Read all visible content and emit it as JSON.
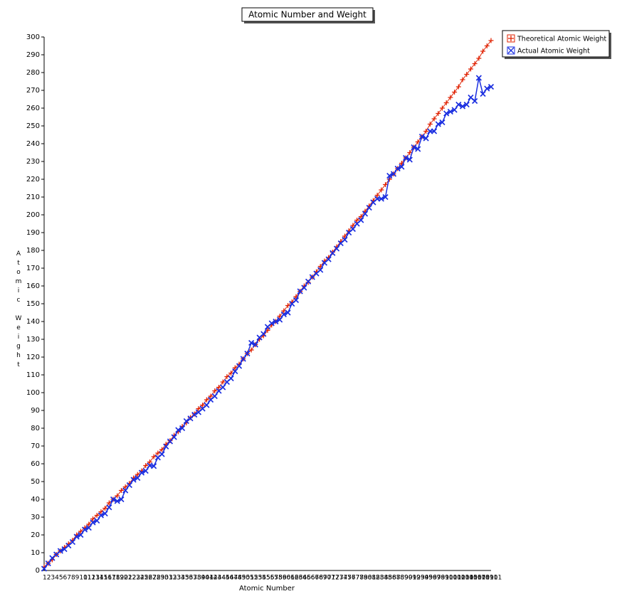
{
  "chart_data": {
    "type": "line",
    "title": "Atomic Number and Weight",
    "x_label": "Atomic Number",
    "y_label": "Atomic Weight",
    "categories": [
      1,
      2,
      3,
      4,
      5,
      6,
      7,
      8,
      9,
      10,
      11,
      12,
      13,
      14,
      15,
      16,
      17,
      18,
      19,
      20,
      21,
      22,
      23,
      24,
      25,
      26,
      27,
      28,
      29,
      30,
      31,
      32,
      33,
      34,
      35,
      36,
      37,
      38,
      39,
      40,
      41,
      42,
      43,
      44,
      45,
      46,
      47,
      48,
      49,
      50,
      51,
      52,
      53,
      54,
      55,
      56,
      57,
      58,
      59,
      60,
      61,
      62,
      63,
      64,
      65,
      66,
      67,
      68,
      69,
      70,
      71,
      72,
      73,
      74,
      75,
      76,
      77,
      78,
      79,
      80,
      81,
      82,
      83,
      84,
      85,
      86,
      87,
      88,
      89,
      90,
      91,
      92,
      93,
      94,
      95,
      96,
      97,
      98,
      99,
      100,
      101,
      102,
      103,
      104,
      105,
      106,
      107,
      108,
      109,
      110,
      111
    ],
    "series": [
      {
        "name": "Theoretical Atomic Weight",
        "color": "#e02000",
        "marker": "plus",
        "values": [
          2,
          4,
          6,
          9,
          11,
          13,
          15,
          17,
          20,
          22,
          24,
          26,
          29,
          31,
          33,
          35,
          38,
          40,
          42,
          45,
          47,
          49,
          52,
          54,
          56,
          59,
          61,
          64,
          66,
          68,
          71,
          73,
          76,
          78,
          81,
          83,
          86,
          88,
          91,
          93,
          96,
          98,
          101,
          103,
          106,
          109,
          111,
          114,
          116,
          119,
          122,
          124,
          127,
          130,
          132,
          135,
          138,
          140,
          143,
          146,
          149,
          151,
          154,
          157,
          160,
          162,
          165,
          168,
          171,
          174,
          176,
          179,
          182,
          185,
          188,
          191,
          194,
          197,
          199,
          202,
          205,
          208,
          211,
          214,
          217,
          220,
          223,
          226,
          229,
          232,
          235,
          238,
          241,
          244,
          247,
          251,
          254,
          257,
          260,
          263,
          266,
          269,
          272,
          276,
          279,
          282,
          285,
          288,
          292,
          295,
          298
        ]
      },
      {
        "name": "Actual Atomic Weight",
        "color": "#1a2ee0",
        "marker": "cross",
        "values": [
          1,
          4,
          7,
          9,
          11,
          12,
          14,
          16,
          19,
          20,
          23,
          24,
          27,
          28,
          31,
          32,
          35.5,
          40,
          39,
          40,
          45,
          48,
          51,
          52,
          55,
          56,
          59,
          58.7,
          63.5,
          65.4,
          69.7,
          72.6,
          75,
          79,
          80,
          84,
          85.5,
          87.6,
          89,
          91,
          93,
          96,
          98,
          101,
          103,
          106,
          108,
          112,
          115,
          119,
          122,
          128,
          127,
          131,
          133,
          137,
          139,
          140,
          141,
          144,
          145,
          150,
          152,
          157,
          159,
          162.5,
          165,
          167,
          169,
          173,
          175,
          178.5,
          181,
          184,
          186,
          190,
          192,
          195,
          197,
          200.6,
          204,
          207,
          209,
          209,
          210,
          222,
          223,
          226,
          227,
          232,
          231,
          238,
          237,
          244,
          243,
          247,
          247,
          251,
          252,
          257,
          258,
          259,
          262,
          261,
          262,
          266,
          264,
          277,
          268,
          271,
          272
        ]
      }
    ],
    "ylim": [
      0,
      300
    ],
    "yticks": [
      0,
      10,
      20,
      30,
      40,
      50,
      60,
      70,
      80,
      90,
      100,
      110,
      120,
      130,
      140,
      150,
      160,
      170,
      180,
      190,
      200,
      210,
      220,
      230,
      240,
      250,
      260,
      270,
      280,
      290,
      300
    ],
    "legend": "top-right"
  }
}
